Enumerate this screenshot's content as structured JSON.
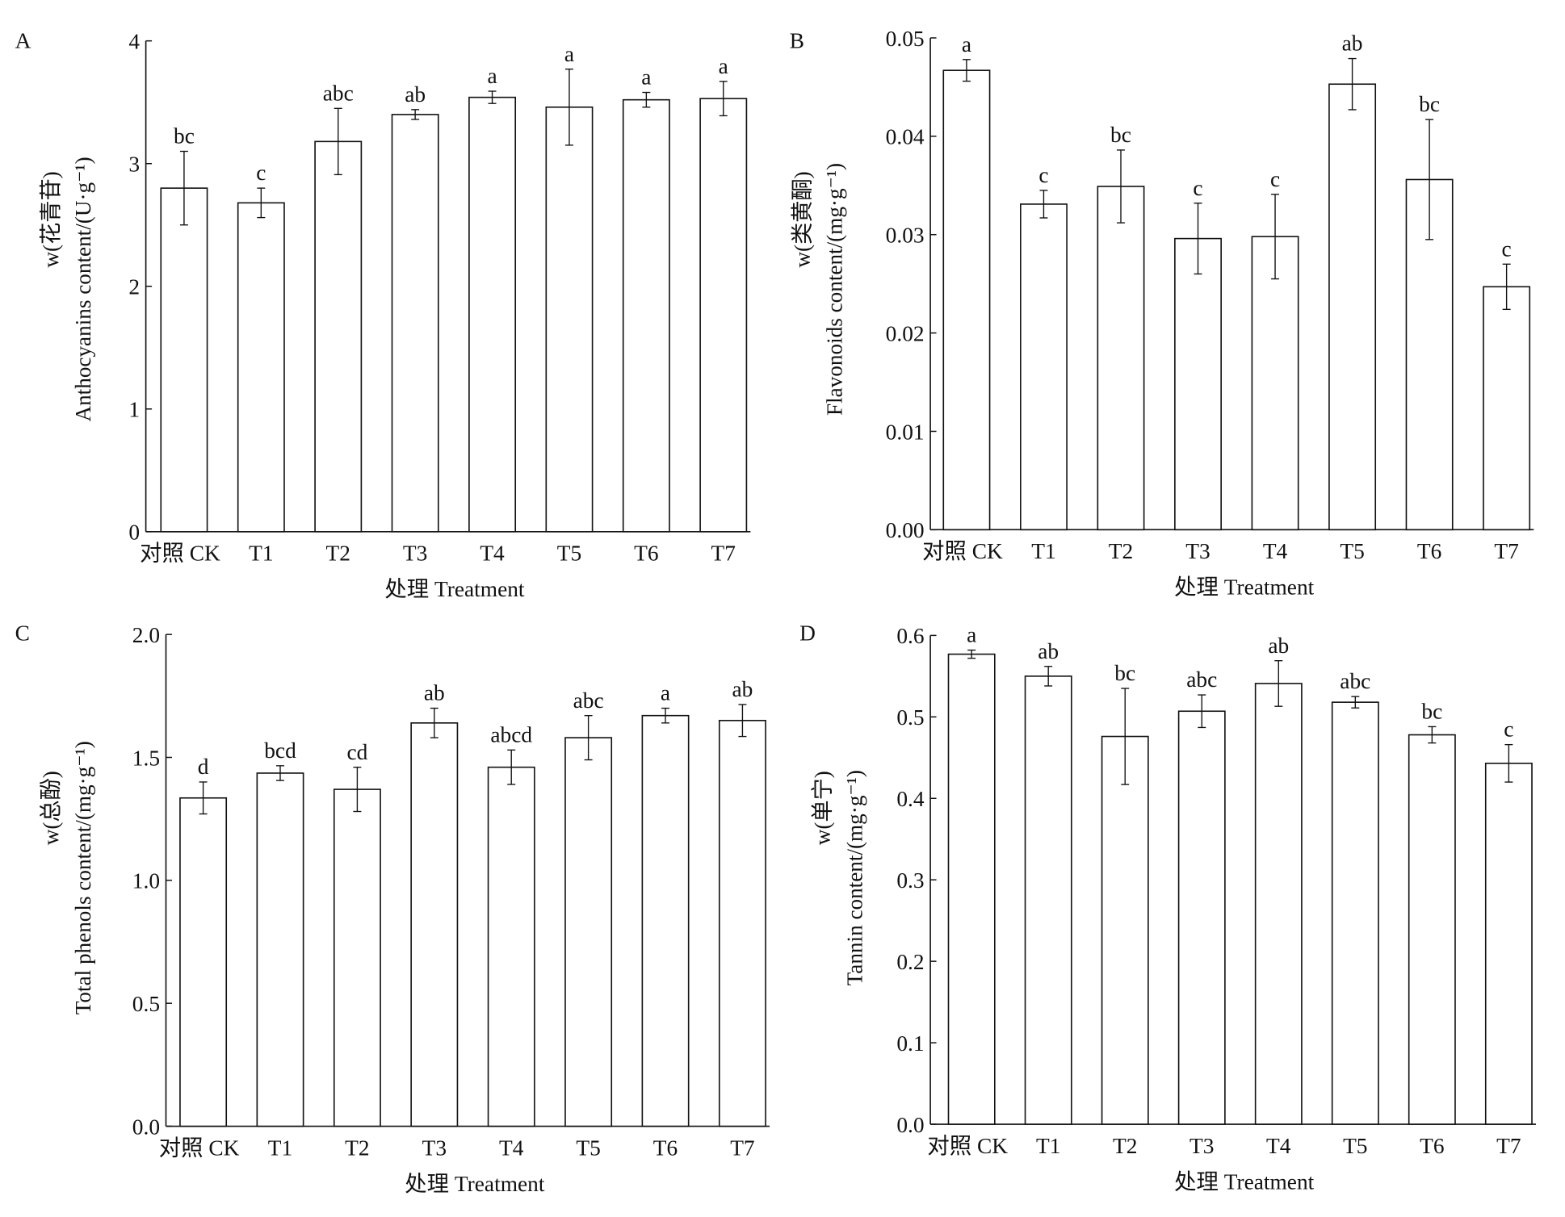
{
  "chart_data": [
    {
      "type": "bar",
      "panel": "A",
      "categories": [
        "对照 CK",
        "T1",
        "T2",
        "T3",
        "T4",
        "T5",
        "T6",
        "T7"
      ],
      "values": [
        2.8,
        2.68,
        3.18,
        3.4,
        3.54,
        3.46,
        3.52,
        3.53
      ],
      "errors": [
        0.3,
        0.12,
        0.27,
        0.04,
        0.05,
        0.31,
        0.06,
        0.14
      ],
      "letters": [
        "bc",
        "c",
        "abc",
        "ab",
        "a",
        "a",
        "a",
        "a"
      ],
      "xlabel": "处理 Treatment",
      "ylabel_cn": "w(花青苷)",
      "ylabel": "Anthocyanins content/(U·g⁻¹)",
      "ylim": [
        0,
        4
      ],
      "yticks": [
        "0",
        "1",
        "2",
        "3",
        "4"
      ]
    },
    {
      "type": "bar",
      "panel": "B",
      "categories": [
        "对照 CK",
        "T1",
        "T2",
        "T3",
        "T4",
        "T5",
        "T6",
        "T7"
      ],
      "values": [
        0.0467,
        0.0331,
        0.0349,
        0.0296,
        0.0298,
        0.0453,
        0.0356,
        0.0247
      ],
      "errors": [
        0.0011,
        0.0014,
        0.0037,
        0.0036,
        0.0043,
        0.0026,
        0.0061,
        0.0023
      ],
      "letters": [
        "a",
        "c",
        "bc",
        "c",
        "c",
        "ab",
        "bc",
        "c"
      ],
      "xlabel": "处理 Treatment",
      "ylabel_cn": "w(类黄酮)",
      "ylabel": "Flavonoids content/(mg·g⁻¹)",
      "ylim": [
        0,
        0.05
      ],
      "yticks": [
        "0.00",
        "0.01",
        "0.02",
        "0.03",
        "0.04",
        "0.05"
      ]
    },
    {
      "type": "bar",
      "panel": "C",
      "categories": [
        "对照 CK",
        "T1",
        "T2",
        "T3",
        "T4",
        "T5",
        "T6",
        "T7"
      ],
      "values": [
        1.335,
        1.436,
        1.37,
        1.64,
        1.46,
        1.58,
        1.67,
        1.65
      ],
      "errors": [
        0.065,
        0.03,
        0.09,
        0.06,
        0.07,
        0.09,
        0.03,
        0.065
      ],
      "letters": [
        "d",
        "bcd",
        "cd",
        "ab",
        "abcd",
        "abc",
        "a",
        "ab"
      ],
      "xlabel": "处理 Treatment",
      "ylabel_cn": "w(总酚)",
      "ylabel": "Total phenols content/(mg·g⁻¹)",
      "ylim": [
        0,
        2.0
      ],
      "yticks": [
        "0.0",
        "0.5",
        "1.0",
        "1.5",
        "2.0"
      ]
    },
    {
      "type": "bar",
      "panel": "D",
      "categories": [
        "对照 CK",
        "T1",
        "T2",
        "T3",
        "T4",
        "T5",
        "T6",
        "T7"
      ],
      "values": [
        0.577,
        0.55,
        0.476,
        0.507,
        0.541,
        0.518,
        0.478,
        0.443
      ],
      "errors": [
        0.005,
        0.012,
        0.059,
        0.02,
        0.028,
        0.007,
        0.01,
        0.023
      ],
      "letters": [
        "a",
        "ab",
        "bc",
        "abc",
        "ab",
        "abc",
        "bc",
        "c"
      ],
      "xlabel": "处理 Treatment",
      "ylabel_cn": "w(单宁)",
      "ylabel": "Tannin content/(mg·g⁻¹)",
      "ylim": [
        0,
        0.6
      ],
      "yticks": [
        "0.0",
        "0.1",
        "0.2",
        "0.3",
        "0.4",
        "0.5",
        "0.6"
      ]
    }
  ]
}
